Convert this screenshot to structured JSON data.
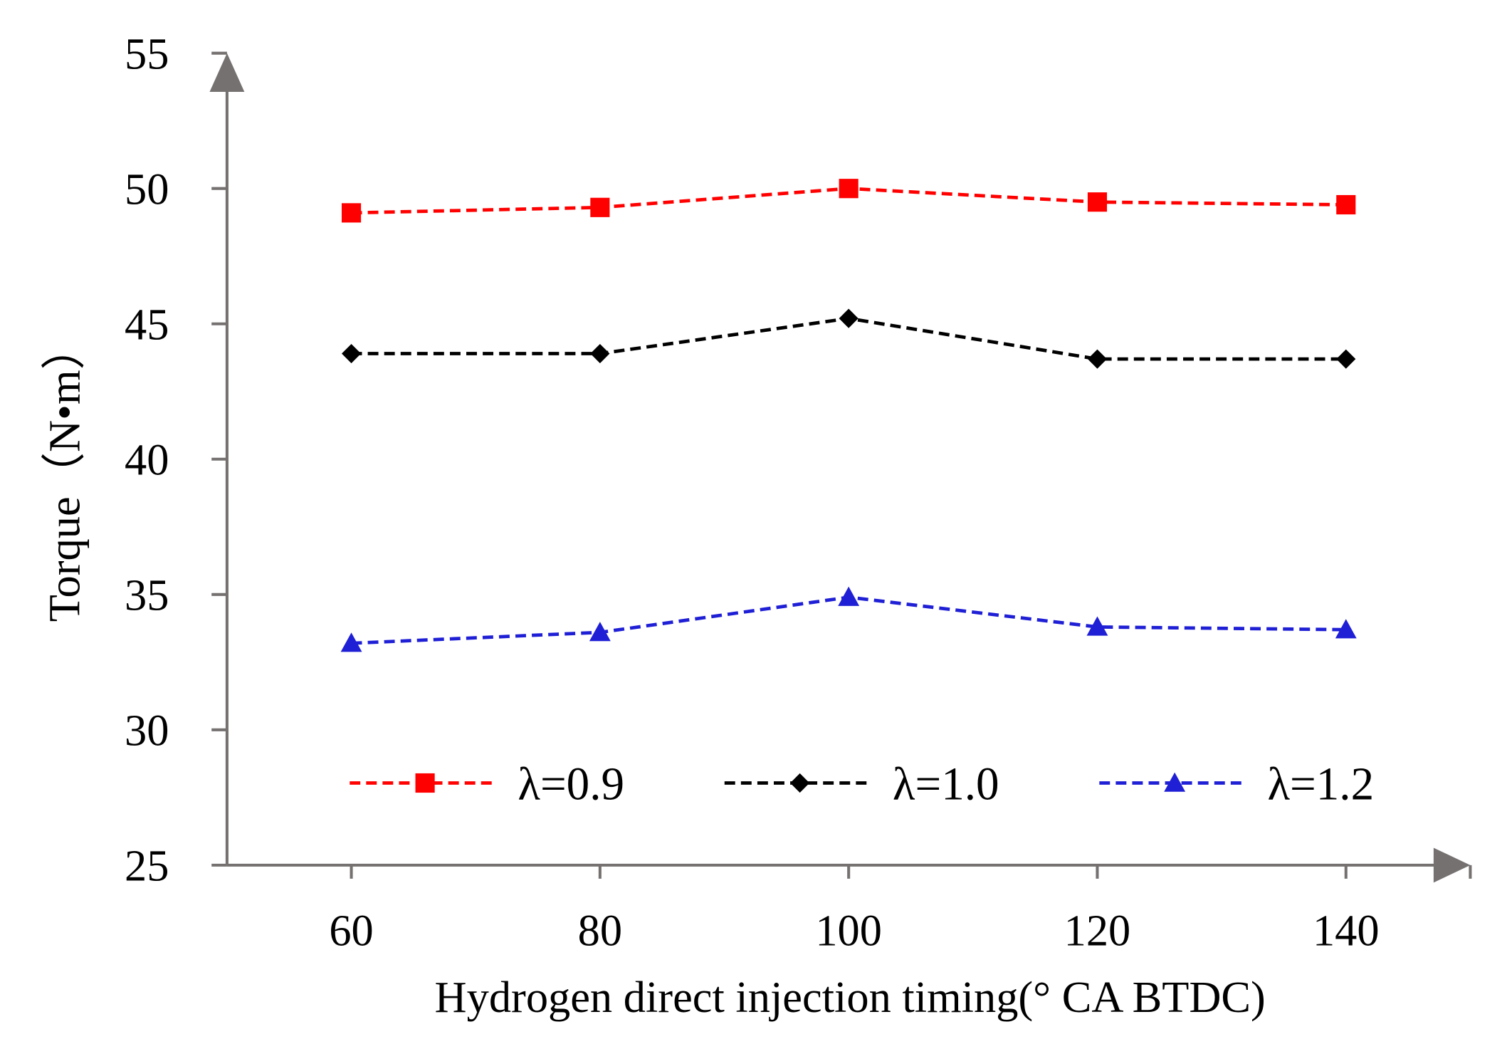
{
  "chart_data": {
    "type": "line",
    "title": "",
    "xlabel": "Hydrogen direct injection timing(°  CA BTDC)",
    "ylabel": "Torque（N•m）",
    "xlim": [
      50,
      150
    ],
    "ylim": [
      25,
      55
    ],
    "x": [
      60,
      80,
      100,
      120,
      140
    ],
    "xticks": [
      "60",
      "80",
      "100",
      "120",
      "140"
    ],
    "yticks": [
      "25",
      "30",
      "35",
      "40",
      "45",
      "50",
      "55"
    ],
    "grid": false,
    "legend_position": "bottom-inside",
    "series": [
      {
        "name": "λ=0.9",
        "color": "#ff0000",
        "marker": "square",
        "values": [
          49.1,
          49.3,
          50.0,
          49.5,
          49.4
        ]
      },
      {
        "name": "λ=1.0",
        "color": "#000000",
        "marker": "diamond",
        "values": [
          43.9,
          43.9,
          45.2,
          43.7,
          43.7
        ]
      },
      {
        "name": "λ=1.2",
        "color": "#1f1fd6",
        "marker": "triangle",
        "values": [
          33.2,
          33.6,
          34.9,
          33.8,
          33.7
        ]
      }
    ]
  }
}
